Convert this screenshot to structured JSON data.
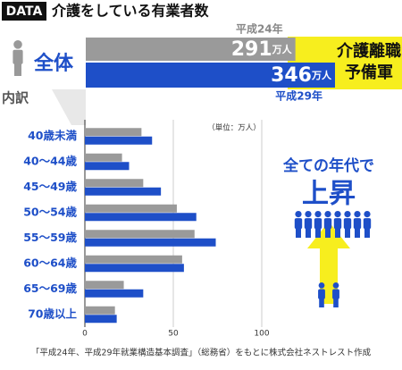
{
  "header": {
    "tag": "DATA",
    "title": "介護をしている有業者数"
  },
  "chart_data": [
    {
      "type": "bar",
      "orientation": "horizontal",
      "title": "全体",
      "categories": [
        "平成24年",
        "平成29年"
      ],
      "values": [
        291,
        346
      ],
      "unit": "万人",
      "colors": [
        "#9a9a9a",
        "#1e4fc8"
      ],
      "annotation": "介護離職予備軍",
      "annotation_color": "#f7ee1e"
    },
    {
      "type": "grouped-bar",
      "orientation": "horizontal",
      "title": "内訳",
      "categories": [
        "40歳未満",
        "40〜44歳",
        "45〜49歳",
        "50〜54歳",
        "55〜59歳",
        "60〜64歳",
        "65〜69歳",
        "70歳以上"
      ],
      "series": [
        {
          "color": "#9a9a9a",
          "values": [
            32,
            21,
            33,
            52,
            62,
            55,
            22,
            17
          ]
        },
        {
          "color": "#1e4fc8",
          "values": [
            38,
            25,
            43,
            63,
            74,
            56,
            33,
            18
          ]
        }
      ],
      "xlim": [
        0,
        100
      ],
      "xticks": [
        0,
        50,
        100
      ],
      "grid": true,
      "unit_label": "（単位：万人）",
      "annotations": [
        "全ての年代で",
        "上昇"
      ]
    }
  ],
  "source": "「平成24年、平成29年就業構造基本調査」（総務省）をもとに株式会社ネストレスト作成"
}
